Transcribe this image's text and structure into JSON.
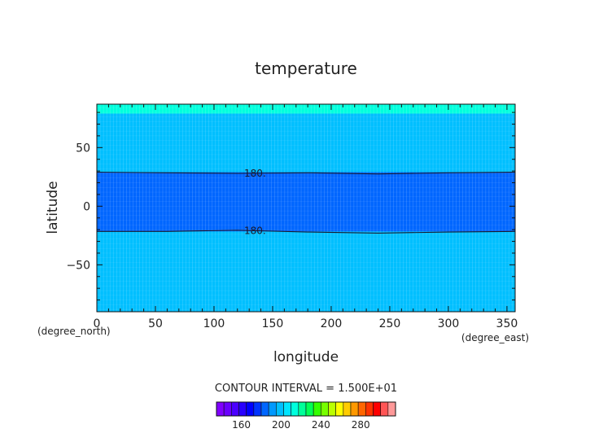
{
  "chart_data": {
    "type": "heatmap",
    "title": "temperature",
    "xlabel": "longitude",
    "ylabel": "latitude",
    "x_unit": "(degree_east)",
    "y_unit": "(degree_north)",
    "xlim": [
      0,
      357
    ],
    "ylim": [
      -90,
      87
    ],
    "x_ticks": [
      0,
      50,
      100,
      150,
      200,
      250,
      300,
      350
    ],
    "y_ticks": [
      -50,
      0,
      50
    ],
    "contour_interval_label": "CONTOUR INTERVAL = 1.500E+01",
    "contour_level_label": "180.",
    "contours": [
      {
        "level": 180,
        "lon": [
          0,
          60,
          120,
          180,
          240,
          300,
          357
        ],
        "lat": [
          29.0,
          28.5,
          28.0,
          28.5,
          27.5,
          28.5,
          29.0
        ],
        "label": "180.",
        "label_lon": 135
      },
      {
        "level": 180,
        "lon": [
          0,
          60,
          120,
          180,
          240,
          300,
          357
        ],
        "lat": [
          -21.5,
          -21.5,
          -20.5,
          -22.0,
          -23.0,
          -22.0,
          -21.5
        ],
        "label": "180.",
        "label_lon": 135
      }
    ],
    "bands": [
      {
        "from_lat": -90,
        "to_lat": 79,
        "value_range": [
          180,
          195
        ],
        "color": "#00bfff"
      },
      {
        "from_lat": 79,
        "to_lat": 87,
        "value_range": [
          195,
          210
        ],
        "color": "#00ffdd"
      },
      {
        "from_lat": -21.5,
        "to_lat": 29,
        "value_range": [
          165,
          180
        ],
        "color": "#0066ff"
      }
    ],
    "colorbar": {
      "ticks": [
        160,
        200,
        240,
        280
      ],
      "start": 135,
      "step": 7.5,
      "colors": [
        "#8000ff",
        "#6a00ff",
        "#4b00ff",
        "#2800ff",
        "#0000ff",
        "#0033ff",
        "#0066ff",
        "#0099ff",
        "#00bfff",
        "#00e5ff",
        "#00ffdd",
        "#00ff99",
        "#00ff55",
        "#33ff00",
        "#77ff00",
        "#bbff00",
        "#ffff00",
        "#ffcc00",
        "#ff9900",
        "#ff6600",
        "#ff3300",
        "#ff0000",
        "#ff5555",
        "#ff9999"
      ]
    }
  }
}
